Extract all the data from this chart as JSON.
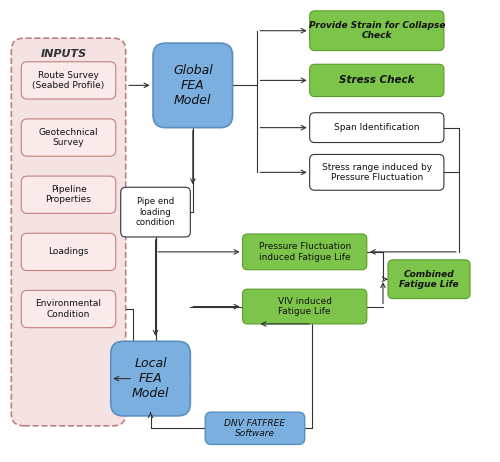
{
  "figsize": [
    5.0,
    4.62
  ],
  "dpi": 100,
  "bg_color": "#ffffff",
  "inputs_label": "INPUTS",
  "input_boxes": [
    "Route Survey\n(Seabed Profile)",
    "Geotechnical\nSurvey",
    "Pipeline\nProperties",
    "Loadings",
    "Environmental\nCondition"
  ],
  "blue_color": "#7aafe0",
  "blue_dark": "#5a8fc0",
  "green_color": "#7dc44a",
  "green_dark": "#5a9c2a",
  "pink_bg": "#f5e2e2",
  "input_box_color": "#faeaea",
  "input_box_border": "#c08080",
  "global_fea_label": "Global\nFEA\nModel",
  "local_fea_label": "Local\nFEA\nModel",
  "pipe_end_label": "Pipe end\nloading\ncondition",
  "dnv_label": "DNV FATFREE\nSoftware",
  "collapse_label": "Provide Strain for Collapse\nCheck",
  "stress_check_label": "Stress Check",
  "span_id_label": "Span Identification",
  "stress_range_label": "Stress range induced by\nPressure Fluctuation",
  "pf_fatigue_label": "Pressure Fluctuation\ninduced Fatigue Life",
  "viv_fatigue_label": "VIV induced\nFatigue Life",
  "combined_label": "Combined\nFatigue Life"
}
